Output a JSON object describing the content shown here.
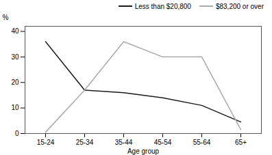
{
  "chart_data": {
    "type": "line",
    "xlabel": "Age group",
    "ylabel": "%",
    "categories": [
      "15-24",
      "25-34",
      "35-44",
      "45-54",
      "55-64",
      "65+"
    ],
    "series": [
      {
        "name": "Less than $20,800",
        "color": "#1a1a1a",
        "values": [
          36,
          17,
          16,
          14,
          11,
          4.5
        ]
      },
      {
        "name": "$83,200 or over",
        "color": "#aaaaaa",
        "values": [
          0.5,
          17,
          36,
          30,
          30,
          1.5
        ]
      }
    ],
    "ylim": [
      0,
      42
    ],
    "yticks": [
      0,
      10,
      20,
      30,
      40
    ],
    "grid": false,
    "legend": "upper right"
  }
}
